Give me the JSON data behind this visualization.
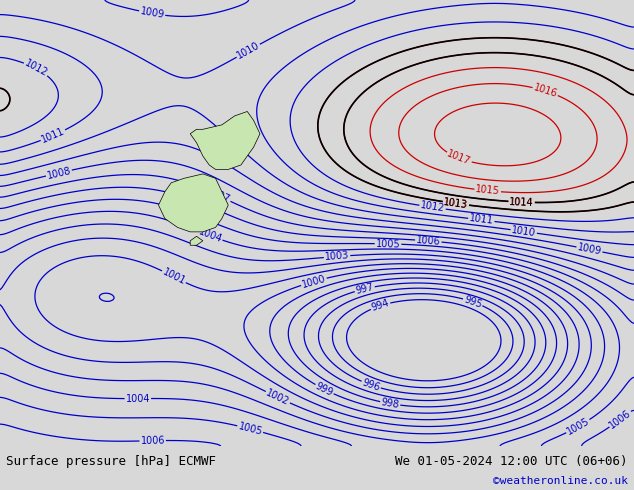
{
  "title_left": "Surface pressure [hPa] ECMWF",
  "title_right": "We 01-05-2024 12:00 UTC (06+06)",
  "credit": "©weatheronline.co.uk",
  "bg_color": "#d8d8d8",
  "land_color": "#c8e6b0",
  "blue_color": "#0000cc",
  "red_color": "#cc0000",
  "black_color": "#000000",
  "pressure_min": 994,
  "pressure_max": 1018,
  "pressure_step": 1,
  "figsize": [
    6.34,
    4.9
  ],
  "dpi": 100
}
